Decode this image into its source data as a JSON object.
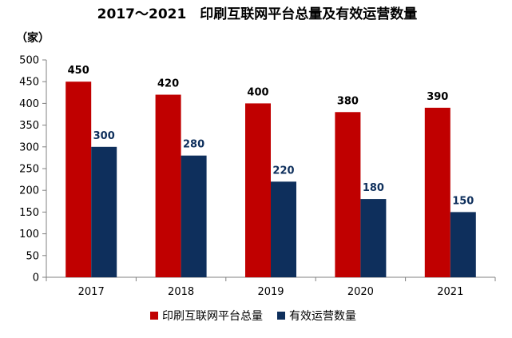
{
  "chart_data": {
    "type": "bar",
    "title": "2017～2021　印刷互联网平台总量及有效运营数量",
    "unit": "（家）",
    "xlabel": "",
    "ylabel": "",
    "categories": [
      "2017",
      "2018",
      "2019",
      "2020",
      "2021"
    ],
    "ylim": [
      0,
      500
    ],
    "yticks": [
      0,
      50,
      100,
      150,
      200,
      250,
      300,
      350,
      400,
      450,
      500
    ],
    "grid": false,
    "legend_position": "bottom",
    "series": [
      {
        "name": "印刷互联网平台总量",
        "color": "#C00000",
        "label_color": "#000000",
        "values": [
          450,
          420,
          400,
          380,
          390
        ]
      },
      {
        "name": "有效运营数量",
        "color": "#0E2F5C",
        "label_color": "#0E2F5C",
        "values": [
          300,
          280,
          220,
          180,
          150
        ]
      }
    ]
  }
}
